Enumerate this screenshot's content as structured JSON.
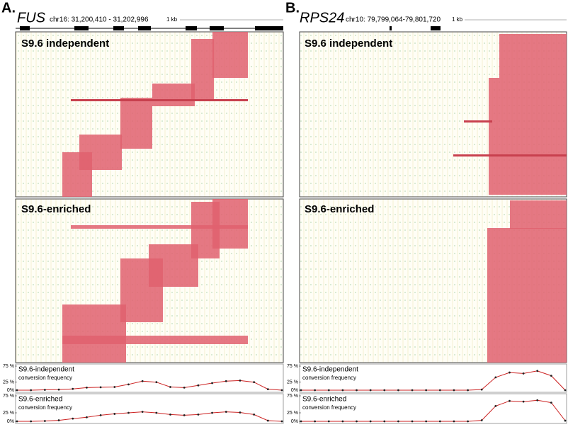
{
  "panels": [
    {
      "label": "A.",
      "gene": "FUS",
      "coords": "chr16: 31,200,410 - 31,202,996",
      "scale": "1 kb",
      "heatmaps": [
        "S9.6 independent",
        "S9.6-enriched"
      ],
      "freq": [
        {
          "title": "S9.6-independent",
          "subtitle": "conversion frequency",
          "color": "#cc2222",
          "ylim": [
            0,
            75
          ],
          "yticks": [
            {
              "value": 0,
              "label": "0%"
            },
            {
              "value": 25,
              "label": "25 %"
            },
            {
              "value": 75,
              "label": "75 %"
            }
          ],
          "values": [
            0,
            0,
            1,
            2,
            4,
            8,
            9,
            10,
            18,
            28,
            25,
            10,
            8,
            15,
            22,
            28,
            30,
            25,
            3,
            0
          ]
        },
        {
          "title": "S9.6-enriched",
          "subtitle": "conversion frequency",
          "color": "#cc2222",
          "ylim": [
            0,
            75
          ],
          "yticks": [
            {
              "value": 0,
              "label": "0%"
            },
            {
              "value": 25,
              "label": "25 %"
            },
            {
              "value": 75,
              "label": "75 %"
            }
          ],
          "values": [
            0,
            0,
            1,
            3,
            8,
            12,
            18,
            22,
            25,
            28,
            25,
            20,
            18,
            20,
            25,
            28,
            26,
            20,
            2,
            0
          ]
        }
      ]
    },
    {
      "label": "B.",
      "gene": "RPS24",
      "coords": "chr10: 79,799,064-79,801,720",
      "scale": "1 kb",
      "heatmaps": [
        "S9.6 independent",
        "S9.6-enriched"
      ],
      "freq": [
        {
          "title": "S9.6-independent",
          "subtitle": "conversion frequency",
          "color": "#cc2222",
          "ylim": [
            0,
            75
          ],
          "yticks": [
            {
              "value": 0,
              "label": "0%"
            },
            {
              "value": 25,
              "label": "25 %"
            },
            {
              "value": 75,
              "label": "75 %"
            }
          ],
          "values": [
            0,
            0,
            0,
            0,
            0,
            0,
            0,
            0,
            0,
            0,
            0,
            0,
            0,
            2,
            40,
            55,
            52,
            60,
            45,
            0
          ]
        },
        {
          "title": "S9.6-enriched",
          "subtitle": "conversion frequency",
          "color": "#cc2222",
          "ylim": [
            0,
            75
          ],
          "yticks": [
            {
              "value": 0,
              "label": "0%"
            },
            {
              "value": 25,
              "label": "25 %"
            },
            {
              "value": 75,
              "label": "75 %"
            }
          ],
          "values": [
            0,
            0,
            0,
            0,
            0,
            0,
            0,
            0,
            0,
            0,
            0,
            0,
            0,
            3,
            45,
            60,
            58,
            62,
            55,
            2
          ]
        }
      ]
    }
  ]
}
